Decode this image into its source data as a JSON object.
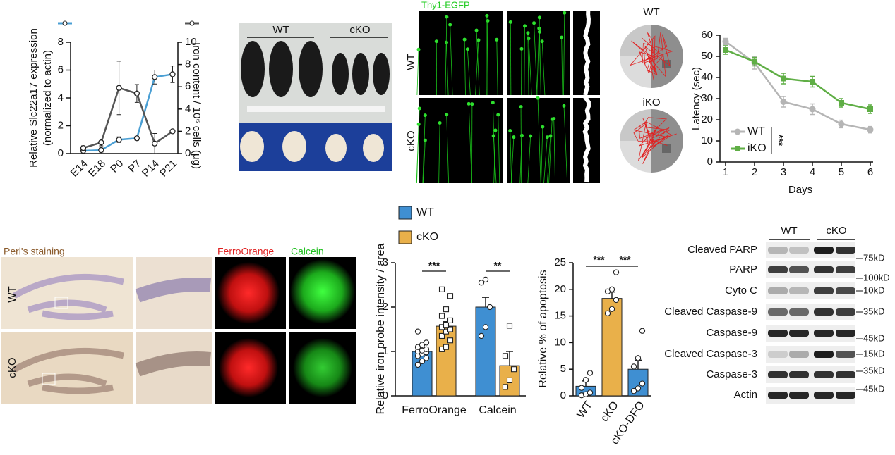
{
  "chart_data": [
    {
      "type": "dualline",
      "ylabel": [
        "Relative Slc22a17 expression",
        "(normalized to actin)"
      ],
      "y2label": "Iron content / 10⁶ cells (μg)",
      "categories": [
        "E14",
        "E18",
        "P0",
        "P7",
        "P14",
        "P21"
      ],
      "ylim": [
        0,
        8
      ],
      "yticks": [
        0,
        2,
        4,
        6,
        8
      ],
      "y2lim": [
        0,
        10
      ],
      "y2ticks": [
        0,
        2,
        4,
        6,
        8,
        10
      ],
      "series": [
        {
          "color": "#4a9fd4",
          "values": [
            0.2,
            0.25,
            1.0,
            1.1,
            5.5,
            5.7
          ],
          "errors": [
            0.1,
            0.15,
            0.2,
            0.15,
            0.5,
            0.6
          ]
        },
        {
          "color": "#555555",
          "axis": "y2",
          "values": [
            0.5,
            1.0,
            5.9,
            5.4,
            0.9,
            2.0
          ],
          "errors": [
            0.2,
            0.3,
            2.4,
            0.8,
            0.9,
            0.1
          ]
        }
      ]
    },
    {
      "type": "line",
      "xlabel": "Days",
      "ylabel": "Latency (sec)",
      "x": [
        1,
        2,
        3,
        4,
        5,
        6
      ],
      "xlim": [
        1,
        6
      ],
      "xticks": [
        1,
        2,
        3,
        4,
        5,
        6
      ],
      "ylim": [
        0,
        60
      ],
      "yticks": [
        0,
        10,
        20,
        30,
        40,
        50,
        60
      ],
      "legend": "lower-left",
      "annotation": "***",
      "series": [
        {
          "name": "WT",
          "color": "#b5b5b5",
          "values": [
            57,
            47,
            28.5,
            25,
            18,
            15.3
          ],
          "errors": [
            1.5,
            3,
            2.5,
            2.5,
            1.8,
            1.5
          ]
        },
        {
          "name": "iKO",
          "color": "#5fae45",
          "values": [
            53,
            47.5,
            39.5,
            38,
            28,
            25
          ],
          "errors": [
            2,
            2,
            2.5,
            2.5,
            2,
            2
          ]
        }
      ]
    },
    {
      "type": "bar",
      "ylabel": "Relative iron probe intensity / area",
      "categories": [
        "FerroOrange",
        "Calcein"
      ],
      "ylim": [
        0,
        3
      ],
      "yticks": [
        0,
        1,
        2,
        3
      ],
      "legend": "top",
      "annotations": [
        "***",
        "**"
      ],
      "series": [
        {
          "name": "WT",
          "color": "#3f8fd2",
          "values": [
            1.0,
            2.0
          ],
          "errors": [
            0.06,
            0.22
          ],
          "points": [
            [
              0.7,
              0.78,
              0.85,
              0.9,
              0.95,
              0.98,
              1.0,
              1.02,
              1.05,
              1.1,
              1.15,
              1.2,
              1.45
            ],
            [
              1.35,
              1.55,
              2.0,
              2.55,
              2.62
            ]
          ]
        },
        {
          "name": "cKO",
          "color": "#e9b04a",
          "values": [
            1.57,
            0.68
          ],
          "errors": [
            0.1,
            0.32
          ],
          "points": [
            [
              1.05,
              1.1,
              1.25,
              1.35,
              1.45,
              1.5,
              1.55,
              1.6,
              1.7,
              1.8,
              1.95,
              2.25,
              2.4
            ],
            [
              0.2,
              0.35,
              0.6,
              0.9,
              1.58
            ]
          ]
        }
      ]
    },
    {
      "type": "bar",
      "ylabel": "Relative % of apoptosis",
      "categories": [
        "WT",
        "cKO",
        "cKO-DFO"
      ],
      "ylim": [
        0,
        25
      ],
      "yticks": [
        0,
        5,
        10,
        15,
        20,
        25
      ],
      "values": [
        1.8,
        18.3,
        5.0
      ],
      "errors": [
        1.0,
        1.2,
        1.7
      ],
      "colors": [
        "#3f8fd2",
        "#e9b04a",
        "#3f8fd2"
      ],
      "points": [
        [
          0.1,
          0.3,
          0.6,
          1.5,
          3.0,
          4.3
        ],
        [
          15.5,
          16.3,
          18.0,
          19.6,
          20.0,
          23.2
        ],
        [
          0.9,
          1.4,
          2.3,
          5.5,
          7.1,
          12.2
        ]
      ],
      "annotations": [
        "***",
        "***"
      ]
    }
  ],
  "panels": {
    "mice": {
      "labels": [
        "WT",
        "cKO"
      ]
    },
    "thy1": {
      "title": "Thy1-EGFP",
      "rows": [
        "WT",
        "cKO"
      ]
    },
    "maze": {
      "labels": [
        "WT",
        "iKO"
      ]
    },
    "perls": {
      "title": "Perl's staining",
      "rows": [
        "WT",
        "cKO"
      ]
    },
    "probes": {
      "titles": [
        "FerroOrange",
        "Calcein"
      ]
    },
    "blot": {
      "groups": [
        "WT",
        "cKO"
      ],
      "rows": [
        "Cleaved PARP",
        "PARP",
        "Cyto C",
        "Cleaved Caspase-9",
        "Caspase-9",
        "Cleaved Caspase-3",
        "Caspase-3",
        "Actin"
      ],
      "markers": [
        "75kD",
        "100kD",
        "10kD",
        "35kD",
        "45kD",
        "15kD",
        "35kD",
        "45kD"
      ]
    }
  }
}
